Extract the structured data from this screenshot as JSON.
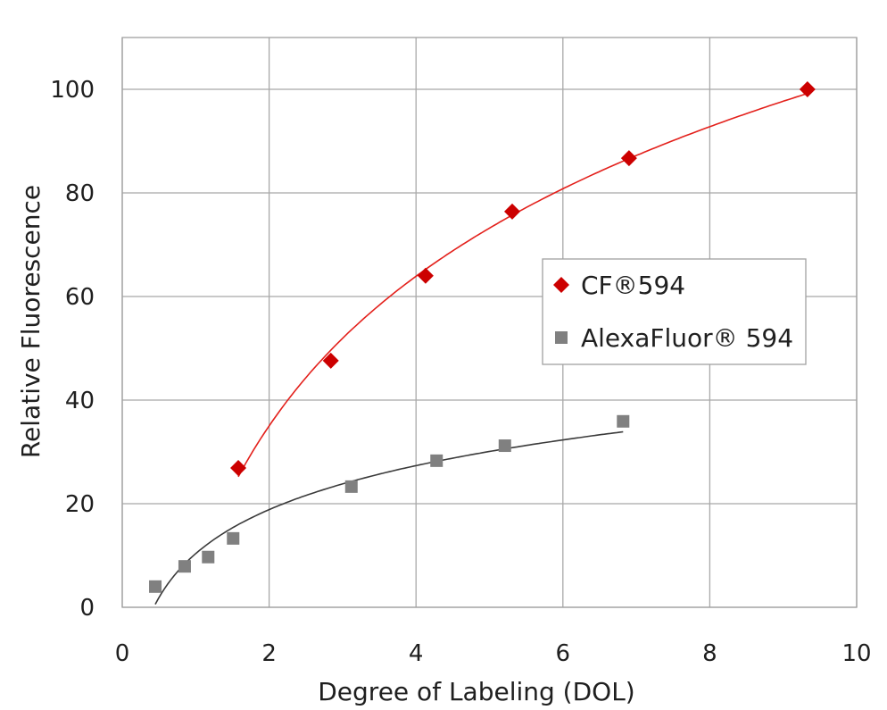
{
  "chart_data": {
    "type": "scatter",
    "xlabel": "Degree of Labeling (DOL)",
    "ylabel": "Relative Fluorescence",
    "xlim": [
      0,
      10
    ],
    "ylim": [
      0,
      110
    ],
    "xticks": [
      0,
      2,
      4,
      6,
      8,
      10
    ],
    "yticks": [
      0,
      20,
      40,
      60,
      80,
      100
    ],
    "grid": true,
    "legend_position": "center-right",
    "series": [
      {
        "name": "CF®594",
        "marker": "diamond",
        "color": "#cc0000",
        "line_color": "#e3201b",
        "trendline": "logarithmic",
        "x": [
          1.58,
          2.84,
          4.13,
          5.31,
          6.9,
          9.33
        ],
        "y": [
          26.9,
          47.6,
          64.0,
          76.4,
          86.7,
          100.0
        ]
      },
      {
        "name": "AlexaFluor® 594",
        "marker": "square",
        "color": "#808080",
        "line_color": "#3a3a3a",
        "trendline": "logarithmic",
        "x": [
          0.45,
          0.85,
          1.17,
          1.51,
          3.12,
          4.28,
          5.21,
          6.82
        ],
        "y": [
          4.0,
          7.9,
          9.7,
          13.3,
          23.3,
          28.3,
          31.2,
          35.9
        ]
      }
    ]
  }
}
